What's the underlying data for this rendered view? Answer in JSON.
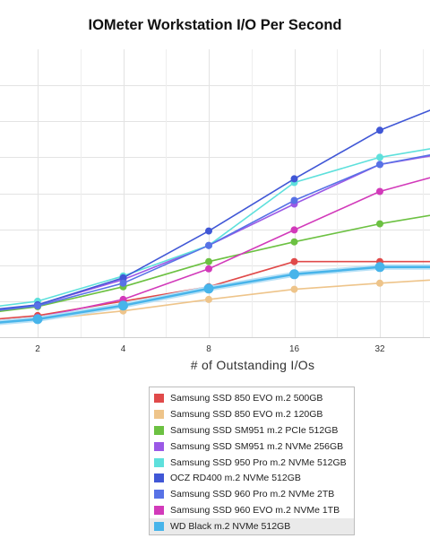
{
  "chart_data": {
    "type": "line",
    "title": "IOMeter Workstation I/O Per Second",
    "xlabel": "# of Outstanding I/Os",
    "ylabel": "",
    "x": [
      1,
      2,
      4,
      8,
      16,
      32,
      64
    ],
    "x_tick_labels": [
      "2",
      "4",
      "8",
      "16",
      "32"
    ],
    "ylim": [
      0,
      80000
    ],
    "y_gridlines": [
      10000,
      20000,
      30000,
      40000,
      50000,
      60000,
      70000
    ],
    "grid": true,
    "legend_position": "bottom-center",
    "series": [
      {
        "name": "Samsung SSD 850 EVO m.2 500GB",
        "color": "#e04a4a",
        "values": [
          4000,
          6000,
          10000,
          14000,
          21000,
          21000,
          21000
        ]
      },
      {
        "name": "Samsung SSD 850 EVO m.2 120GB",
        "color": "#eec48a",
        "values": [
          3000,
          4800,
          7300,
          10500,
          13300,
          15000,
          16500
        ]
      },
      {
        "name": "Samsung SSD SM951 m.2 PCIe 512GB",
        "color": "#6cc142",
        "values": [
          5500,
          8500,
          14000,
          21000,
          26500,
          31500,
          35500
        ]
      },
      {
        "name": "Samsung SSD SM951 m.2 NVMe 256GB",
        "color": "#9b59e6",
        "values": [
          6000,
          9000,
          16000,
          25500,
          37000,
          48000,
          52000
        ]
      },
      {
        "name": "Samsung SSD 950 Pro m.2 NVMe 512GB",
        "color": "#5ee0dc",
        "values": [
          7000,
          10000,
          17000,
          25500,
          43000,
          50000,
          54000
        ]
      },
      {
        "name": "OCZ RD400 m.2 NVMe 512GB",
        "color": "#4057d6",
        "values": [
          6500,
          9000,
          16500,
          29500,
          44000,
          57500,
          67000
        ]
      },
      {
        "name": "Samsung SSD 960 Pro m.2 NVMe 2TB",
        "color": "#5872e6",
        "values": [
          6000,
          8700,
          15000,
          25500,
          38000,
          48000,
          52500
        ]
      },
      {
        "name": "Samsung SSD 960 EVO m.2 NVMe 1TB",
        "color": "#d23aba",
        "values": [
          3500,
          5500,
          10500,
          19000,
          29800,
          40500,
          47000
        ]
      },
      {
        "name": "WD Black m.2 NVMe 512GB",
        "color": "#47b4ea",
        "values": [
          3000,
          5000,
          8800,
          13500,
          17500,
          19500,
          19500
        ]
      }
    ]
  }
}
